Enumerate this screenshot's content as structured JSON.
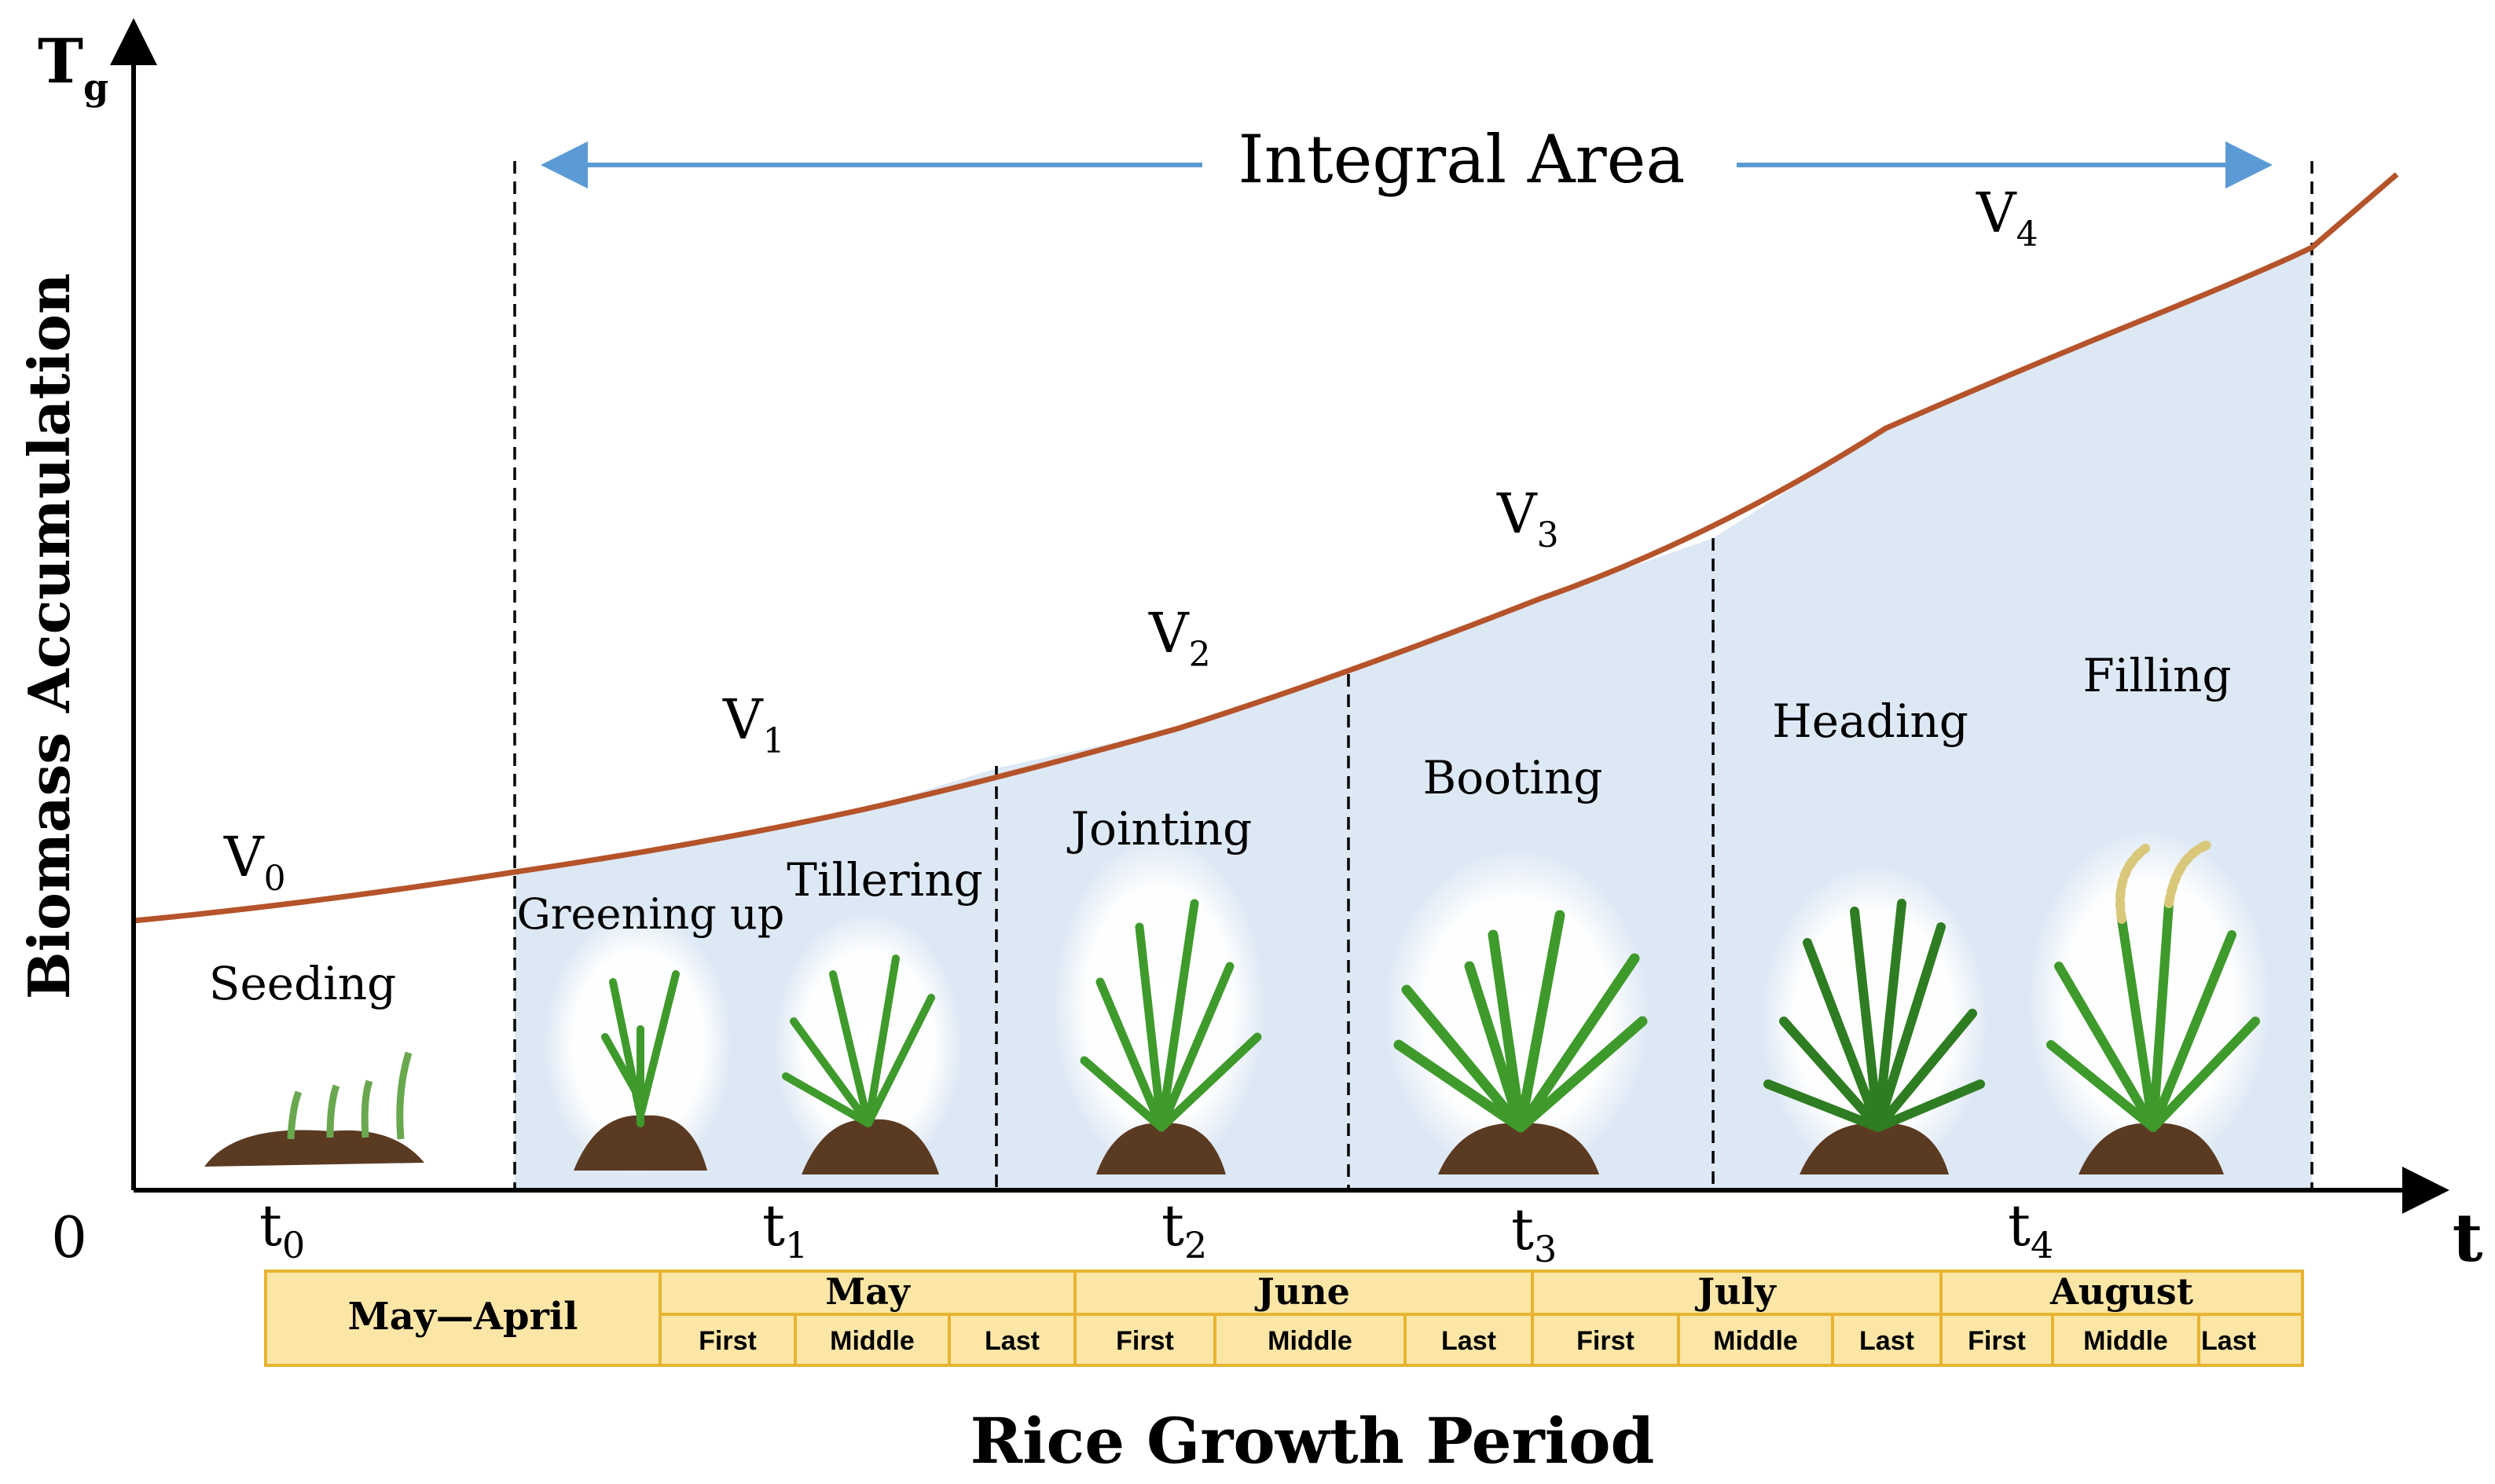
{
  "axes": {
    "y_symbol": "T",
    "y_symbol_sub": "g",
    "y_label": "Biomass Accumulation",
    "origin": "0",
    "x_symbol": "t",
    "x_title": "Rice Growth Period"
  },
  "integral_area_label": "Integral Area",
  "curve_labels": [
    {
      "main": "V",
      "sub": "0"
    },
    {
      "main": "V",
      "sub": "1"
    },
    {
      "main": "V",
      "sub": "2"
    },
    {
      "main": "V",
      "sub": "3"
    },
    {
      "main": "V",
      "sub": "4"
    }
  ],
  "time_markers": [
    {
      "main": "t",
      "sub": "0"
    },
    {
      "main": "t",
      "sub": "1"
    },
    {
      "main": "t",
      "sub": "2"
    },
    {
      "main": "t",
      "sub": "3"
    },
    {
      "main": "t",
      "sub": "4"
    }
  ],
  "stages": [
    "Seeding",
    "Greening up",
    "Tillering",
    "Jointing",
    "Booting",
    "Heading",
    "Filling"
  ],
  "calendar": {
    "first_cell": "May—April",
    "months": [
      {
        "name": "May",
        "parts": [
          "First",
          "Middle",
          "Last"
        ]
      },
      {
        "name": "June",
        "parts": [
          "First",
          "Middle",
          "Last"
        ]
      },
      {
        "name": "July",
        "parts": [
          "First",
          "Middle",
          "Last"
        ]
      },
      {
        "name": "August",
        "parts": [
          "First",
          "Middle",
          "Last"
        ]
      }
    ]
  },
  "colors": {
    "curve": "#b5532a",
    "area_fill": "#dde8f5",
    "arrow": "#5b9bd5",
    "calendar_fill": "#fce6a6",
    "calendar_border": "#e8b431",
    "axis": "#000000",
    "plant_green": "#3f9a2c",
    "soil": "#5b3a22"
  }
}
